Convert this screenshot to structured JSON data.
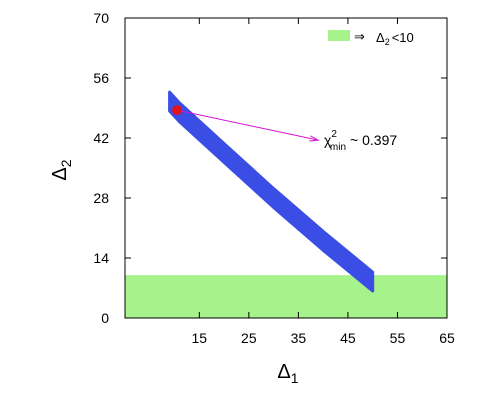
{
  "chart_data": {
    "type": "scatter",
    "xlabel": "Δ",
    "xlabel_sub": "1",
    "ylabel": "Δ",
    "ylabel_sub": "2",
    "xlim": [
      0,
      65
    ],
    "ylim": [
      0,
      70
    ],
    "x_ticks": [
      15,
      25,
      35,
      45,
      55,
      65
    ],
    "y_ticks": [
      0,
      14,
      28,
      42,
      56,
      70
    ],
    "grid": false,
    "colors": {
      "band": "#3a4ee6",
      "region": "#a6f28b",
      "best_fit": "#e0141c",
      "arrow": "#d414d4"
    },
    "series": [
      {
        "kind": "band",
        "points": [
          [
            9,
            50.5
          ],
          [
            11,
            48
          ],
          [
            20,
            38.5
          ],
          [
            30,
            28
          ],
          [
            40,
            18
          ],
          [
            50,
            8.5
          ]
        ],
        "band_halfwidth_y": 2.2
      }
    ],
    "shaded_region": {
      "y_range": [
        0,
        10
      ],
      "x_range": [
        0,
        65
      ]
    },
    "legend": {
      "position": "top-right",
      "symbol": "⇒",
      "label_main": "Δ",
      "label_sub": "2",
      "label_rest": "<10"
    },
    "best_fit_point": {
      "x": 10.5,
      "y": 48.5
    },
    "annotation": {
      "chi": "χ",
      "sup": "2",
      "sub": "min",
      "rest": "~ 0.397",
      "anchor_x": 39,
      "anchor_y": 41.5
    }
  }
}
